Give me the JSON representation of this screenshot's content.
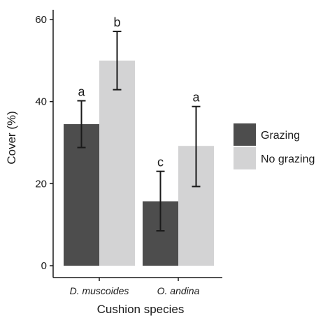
{
  "chart_data": {
    "type": "bar",
    "xlabel": "Cushion species",
    "ylabel": "Cover (%)",
    "ylim": [
      0,
      60
    ],
    "yticks": [
      0,
      20,
      40,
      60
    ],
    "categories": [
      "D. muscoides",
      "O. andina"
    ],
    "series": [
      {
        "name": "Grazing",
        "color": "#4d4d4d",
        "values": [
          34.5,
          15.7
        ],
        "error_low": [
          28.8,
          8.5
        ],
        "error_high": [
          40.2,
          23.0
        ],
        "sig_letters": [
          "a",
          "c"
        ]
      },
      {
        "name": "No grazing",
        "color": "#d3d3d4",
        "values": [
          50.0,
          29.2
        ],
        "error_low": [
          42.9,
          19.3
        ],
        "error_high": [
          57.1,
          38.8
        ],
        "sig_letters": [
          "b",
          "a"
        ]
      }
    ],
    "legend_position": "right",
    "grid": false
  }
}
